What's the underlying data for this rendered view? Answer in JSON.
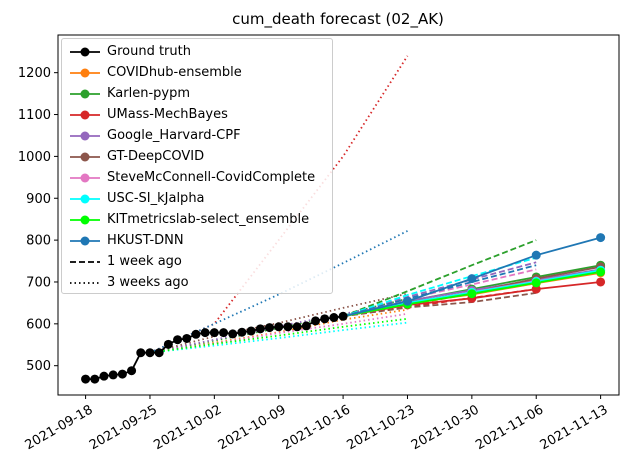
{
  "chart_data": {
    "type": "line",
    "title": "cum_death forecast (02_AK)",
    "xlabel": "",
    "ylabel": "",
    "x_range": [
      "2021-09-15",
      "2021-11-15"
    ],
    "ylim": [
      430,
      1290
    ],
    "yticks": [
      500,
      600,
      700,
      800,
      900,
      1000,
      1100,
      1200
    ],
    "xticks": [
      "2021-09-18",
      "2021-09-25",
      "2021-10-02",
      "2021-10-09",
      "2021-10-16",
      "2021-10-23",
      "2021-10-30",
      "2021-11-06",
      "2021-11-13"
    ],
    "ground_truth": {
      "name": "Ground truth",
      "color": "#000000",
      "points": [
        [
          "2021-09-18",
          468
        ],
        [
          "2021-09-19",
          468
        ],
        [
          "2021-09-20",
          475
        ],
        [
          "2021-09-21",
          478
        ],
        [
          "2021-09-22",
          480
        ],
        [
          "2021-09-23",
          488
        ],
        [
          "2021-09-24",
          531
        ],
        [
          "2021-09-25",
          531
        ],
        [
          "2021-09-26",
          531
        ],
        [
          "2021-09-27",
          551
        ],
        [
          "2021-09-28",
          562
        ],
        [
          "2021-09-29",
          565
        ],
        [
          "2021-09-30",
          575
        ],
        [
          "2021-10-01",
          579
        ],
        [
          "2021-10-02",
          579
        ],
        [
          "2021-10-03",
          579
        ],
        [
          "2021-10-04",
          576
        ],
        [
          "2021-10-05",
          580
        ],
        [
          "2021-10-06",
          583
        ],
        [
          "2021-10-07",
          588
        ],
        [
          "2021-10-08",
          591
        ],
        [
          "2021-10-09",
          593
        ],
        [
          "2021-10-10",
          593
        ],
        [
          "2021-10-11",
          593
        ],
        [
          "2021-10-12",
          595
        ],
        [
          "2021-10-13",
          607
        ],
        [
          "2021-10-14",
          612
        ],
        [
          "2021-10-15",
          615
        ],
        [
          "2021-10-16",
          618
        ]
      ]
    },
    "forecasts": [
      {
        "name": "COVIDhub-ensemble",
        "color": "#ff7f0e",
        "points": [
          [
            "2021-10-23",
            649
          ],
          [
            "2021-10-30",
            670
          ],
          [
            "2021-11-06",
            697
          ],
          [
            "2021-11-13",
            722
          ]
        ],
        "one_week_ago": [
          [
            "2021-10-16",
            618
          ],
          [
            "2021-10-23",
            645
          ],
          [
            "2021-10-30",
            672
          ],
          [
            "2021-11-06",
            697
          ]
        ],
        "three_weeks_ago": [
          [
            "2021-09-25",
            531
          ],
          [
            "2021-10-02",
            555
          ],
          [
            "2021-10-09",
            580
          ],
          [
            "2021-10-16",
            610
          ],
          [
            "2021-10-23",
            634
          ]
        ]
      },
      {
        "name": "Karlen-pypm",
        "color": "#2ca02c",
        "points": [
          [
            "2021-10-23",
            654
          ],
          [
            "2021-10-30",
            683
          ],
          [
            "2021-11-06",
            712
          ],
          [
            "2021-11-13",
            740
          ]
        ],
        "one_week_ago": [
          [
            "2021-10-16",
            618
          ],
          [
            "2021-10-23",
            678
          ],
          [
            "2021-10-30",
            740
          ],
          [
            "2021-11-06",
            800
          ]
        ],
        "three_weeks_ago": [
          [
            "2021-09-25",
            531
          ],
          [
            "2021-10-02",
            560
          ],
          [
            "2021-10-09",
            590
          ],
          [
            "2021-10-16",
            622
          ],
          [
            "2021-10-23",
            660
          ]
        ]
      },
      {
        "name": "UMass-MechBayes",
        "color": "#d62728",
        "points": [
          [
            "2021-10-23",
            645
          ],
          [
            "2021-10-30",
            661
          ],
          [
            "2021-11-06",
            683
          ],
          [
            "2021-11-13",
            700
          ]
        ],
        "one_week_ago": [
          [
            "2021-10-16",
            618
          ],
          [
            "2021-10-23",
            640
          ],
          [
            "2021-10-30",
            662
          ],
          [
            "2021-11-06",
            683
          ]
        ],
        "three_weeks_ago": [
          [
            "2021-09-25",
            531
          ],
          [
            "2021-10-02",
            600
          ],
          [
            "2021-10-09",
            800
          ],
          [
            "2021-10-16",
            1000
          ],
          [
            "2021-10-23",
            1240
          ]
        ]
      },
      {
        "name": "Google_Harvard-CPF",
        "color": "#9467bd",
        "points": [
          [
            "2021-10-23",
            655
          ],
          [
            "2021-10-30",
            680
          ],
          [
            "2021-11-06",
            705
          ],
          [
            "2021-11-13",
            730
          ]
        ],
        "one_week_ago": [
          [
            "2021-10-16",
            618
          ],
          [
            "2021-10-23",
            664
          ],
          [
            "2021-10-30",
            706
          ],
          [
            "2021-11-06",
            747
          ]
        ],
        "three_weeks_ago": [
          [
            "2021-09-25",
            531
          ],
          [
            "2021-10-02",
            562
          ],
          [
            "2021-10-09",
            594
          ],
          [
            "2021-10-16",
            624
          ],
          [
            "2021-10-23",
            651
          ]
        ]
      },
      {
        "name": "GT-DeepCOVID",
        "color": "#8c564b",
        "points": [
          [
            "2021-10-23",
            650
          ],
          [
            "2021-10-30",
            675
          ],
          [
            "2021-11-06",
            708
          ],
          [
            "2021-11-13",
            736
          ]
        ],
        "one_week_ago": [
          [
            "2021-10-16",
            618
          ],
          [
            "2021-10-23",
            639
          ],
          [
            "2021-10-30",
            652
          ],
          [
            "2021-11-06",
            674
          ]
        ],
        "three_weeks_ago": [
          [
            "2021-09-25",
            531
          ],
          [
            "2021-10-02",
            570
          ],
          [
            "2021-10-09",
            602
          ],
          [
            "2021-10-16",
            638
          ],
          [
            "2021-10-23",
            672
          ]
        ]
      },
      {
        "name": "SteveMcConnell-CovidComplete",
        "color": "#e377c2",
        "points": [
          [
            "2021-10-23",
            647
          ],
          [
            "2021-10-30",
            676
          ],
          [
            "2021-11-06",
            702
          ],
          [
            "2021-11-13",
            727
          ]
        ],
        "one_week_ago": [
          [
            "2021-10-16",
            618
          ],
          [
            "2021-10-23",
            660
          ],
          [
            "2021-10-30",
            694
          ],
          [
            "2021-11-06",
            730
          ]
        ],
        "three_weeks_ago": [
          [
            "2021-09-25",
            531
          ],
          [
            "2021-10-02",
            553
          ],
          [
            "2021-10-09",
            578
          ],
          [
            "2021-10-16",
            600
          ],
          [
            "2021-10-23",
            624
          ]
        ]
      },
      {
        "name": "USC-SI_kJalpha",
        "color": "#00ffff",
        "points": [
          [
            "2021-10-23",
            650
          ],
          [
            "2021-10-30",
            675
          ],
          [
            "2021-11-06",
            701
          ],
          [
            "2021-11-13",
            728
          ]
        ],
        "one_week_ago": [
          [
            "2021-10-16",
            618
          ],
          [
            "2021-10-23",
            669
          ],
          [
            "2021-10-30",
            714
          ],
          [
            "2021-11-06",
            758
          ]
        ],
        "three_weeks_ago": [
          [
            "2021-09-25",
            531
          ],
          [
            "2021-10-02",
            548
          ],
          [
            "2021-10-09",
            566
          ],
          [
            "2021-10-16",
            585
          ],
          [
            "2021-10-23",
            603
          ]
        ]
      },
      {
        "name": "KITmetricslab-select_ensemble",
        "color": "#00ff00",
        "points": [
          [
            "2021-10-23",
            647
          ],
          [
            "2021-10-30",
            672
          ],
          [
            "2021-11-06",
            698
          ],
          [
            "2021-11-13",
            724
          ]
        ],
        "one_week_ago": [
          [
            "2021-10-16",
            618
          ],
          [
            "2021-10-23",
            648
          ],
          [
            "2021-10-30",
            675
          ],
          [
            "2021-11-06",
            702
          ]
        ],
        "three_weeks_ago": [
          [
            "2021-09-25",
            531
          ],
          [
            "2021-10-02",
            552
          ],
          [
            "2021-10-09",
            572
          ],
          [
            "2021-10-16",
            593
          ],
          [
            "2021-10-23",
            612
          ]
        ]
      },
      {
        "name": "HKUST-DNN",
        "color": "#1f77b4",
        "points": [
          [
            "2021-10-23",
            654
          ],
          [
            "2021-10-30",
            708
          ],
          [
            "2021-11-06",
            764
          ],
          [
            "2021-11-13",
            806
          ]
        ],
        "one_week_ago": [
          [
            "2021-10-16",
            618
          ],
          [
            "2021-10-23",
            660
          ],
          [
            "2021-10-30",
            700
          ],
          [
            "2021-11-06",
            740
          ]
        ],
        "three_weeks_ago": [
          [
            "2021-09-25",
            531
          ],
          [
            "2021-10-02",
            600
          ],
          [
            "2021-10-09",
            670
          ],
          [
            "2021-10-16",
            745
          ],
          [
            "2021-10-23",
            822
          ]
        ]
      }
    ],
    "legend": {
      "location": "upper-left",
      "style_entries": [
        {
          "label": "1 week ago",
          "style": "dashed"
        },
        {
          "label": "3 weeks ago",
          "style": "dotted"
        }
      ]
    }
  }
}
